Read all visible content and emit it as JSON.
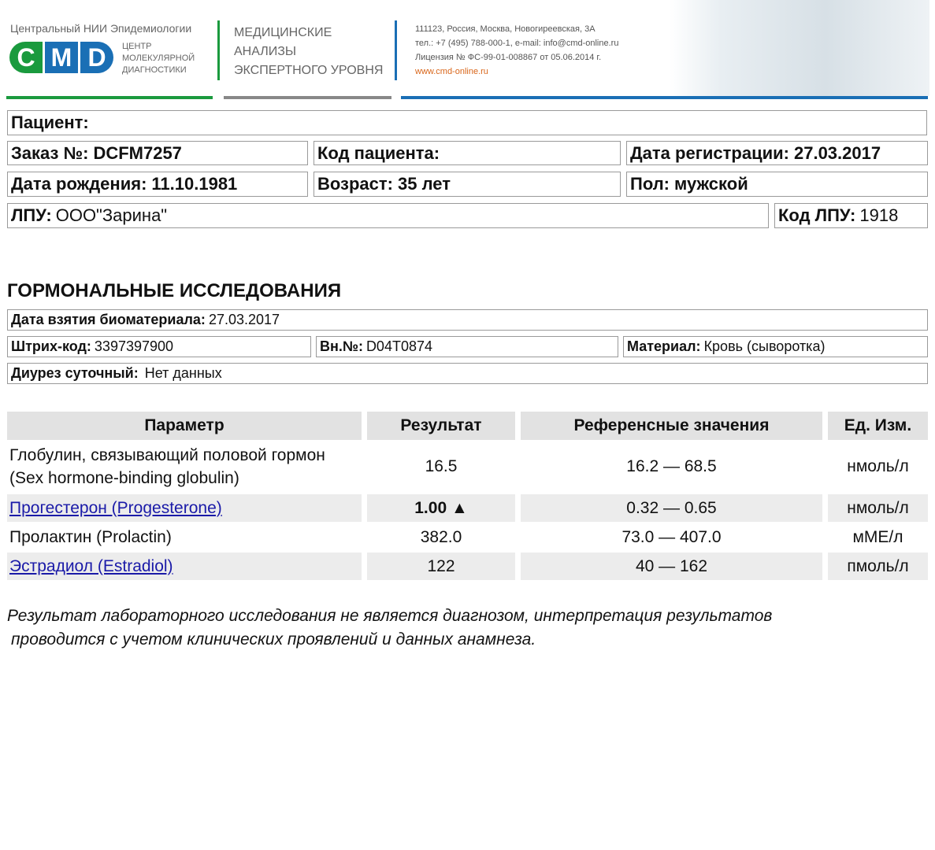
{
  "header": {
    "institute": "Центральный НИИ Эпидемиологии",
    "logo_letters": [
      "C",
      "M",
      "D"
    ],
    "logo_caption": [
      "ЦЕНТР",
      "МОЛЕКУЛЯРНОЙ",
      "ДИАГНОСТИКИ"
    ],
    "slogan": [
      "МЕДИЦИНСКИЕ",
      "АНАЛИЗЫ",
      "ЭКСПЕРТНОГО УРОВНЯ"
    ],
    "address": "111123, Россия, Москва, Новогиреевская, 3А",
    "contacts": "тел.: +7 (495) 788-000-1, e-mail: info@cmd-online.ru",
    "license": "Лицензия № ФС-99-01-008867 от 05.06.2014 г.",
    "website": "www.cmd-online.ru",
    "colors": {
      "green": "#1a9a3e",
      "blue": "#1a6fb5",
      "gray": "#888888",
      "orange": "#d9661a"
    }
  },
  "patient": {
    "patient_label": "Пациент:",
    "order_label": "Заказ №:",
    "order": "DCFM7257",
    "code_label": "Код пациента:",
    "reg_label": "Дата регистрации:",
    "reg_date": "27.03.2017",
    "dob_label": "Дата рождения:",
    "dob": "11.10.1981",
    "age_label": "Возраст:",
    "age": "35 лет",
    "sex_label": "Пол:",
    "sex": "мужской",
    "lpu_label": "ЛПУ:",
    "lpu": "ООО\"Зарина\"",
    "lpu_code_label": "Код ЛПУ:",
    "lpu_code": "1918"
  },
  "section": {
    "title": "ГОРМОНАЛЬНЫЕ ИССЛЕДОВАНИЯ",
    "sample_date_label": "Дата взятия биоматериала:",
    "sample_date": "27.03.2017",
    "barcode_label": "Штрих-код:",
    "barcode": "3397397900",
    "inner_label": "Вн.№:",
    "inner": "D04T0874",
    "material_label": "Материал:",
    "material": "Кровь (сыворотка)",
    "diuresis_label": "Диурез суточный:",
    "diuresis": "Нет данных"
  },
  "table": {
    "headers": [
      "Параметр",
      "Результат",
      "Референсные значения",
      "Ед. Изм."
    ],
    "rows": [
      {
        "param": "Глобулин, связывающий половой гормон (Sex hormone-binding globulin)",
        "result": "16.5",
        "ref": "16.2 — 68.5",
        "unit": "нмоль/л"
      },
      {
        "param": "Прогестерон (Progesterone)",
        "result": "1.00 ▲",
        "ref": "0.32 — 0.65",
        "unit": "нмоль/л",
        "link": true,
        "flag": "high"
      },
      {
        "param": "Пролактин (Prolactin)",
        "result": "382.0",
        "ref": "73.0 — 407.0",
        "unit": "мМЕ/л"
      },
      {
        "param": "Эстрадиол (Estradiol)",
        "result": "122",
        "ref": "40 — 162",
        "unit": "пмоль/л",
        "link": true
      }
    ]
  },
  "note": [
    "Результат лабораторного исследования не является диагнозом, интерпретация результатов",
    "проводится с учетом клинических проявлений и данных анамнеза."
  ]
}
